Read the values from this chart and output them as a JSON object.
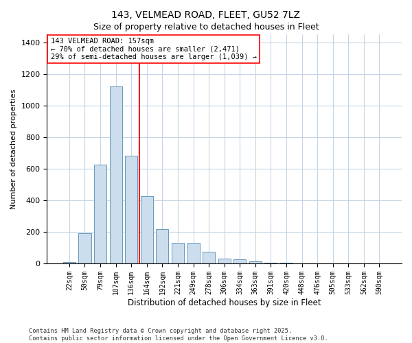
{
  "title": "143, VELMEAD ROAD, FLEET, GU52 7LZ",
  "subtitle": "Size of property relative to detached houses in Fleet",
  "xlabel": "Distribution of detached houses by size in Fleet",
  "ylabel": "Number of detached properties",
  "bar_color": "#ccdded",
  "bar_edge_color": "#6699bb",
  "categories": [
    "22sqm",
    "50sqm",
    "79sqm",
    "107sqm",
    "136sqm",
    "164sqm",
    "192sqm",
    "221sqm",
    "249sqm",
    "278sqm",
    "306sqm",
    "334sqm",
    "363sqm",
    "391sqm",
    "420sqm",
    "448sqm",
    "476sqm",
    "505sqm",
    "533sqm",
    "562sqm",
    "590sqm"
  ],
  "values": [
    10,
    190,
    625,
    1120,
    680,
    425,
    215,
    130,
    130,
    75,
    30,
    25,
    15,
    5,
    5,
    2,
    2,
    1,
    0,
    0,
    0
  ],
  "vline_position": 4.5,
  "annotation_text": "143 VELMEAD ROAD: 157sqm\n← 70% of detached houses are smaller (2,471)\n29% of semi-detached houses are larger (1,039) →",
  "ylim": [
    0,
    1450
  ],
  "yticks": [
    0,
    200,
    400,
    600,
    800,
    1000,
    1200,
    1400
  ],
  "grid_color": "#c5d5e5",
  "footer_line1": "Contains HM Land Registry data © Crown copyright and database right 2025.",
  "footer_line2": "Contains public sector information licensed under the Open Government Licence v3.0."
}
